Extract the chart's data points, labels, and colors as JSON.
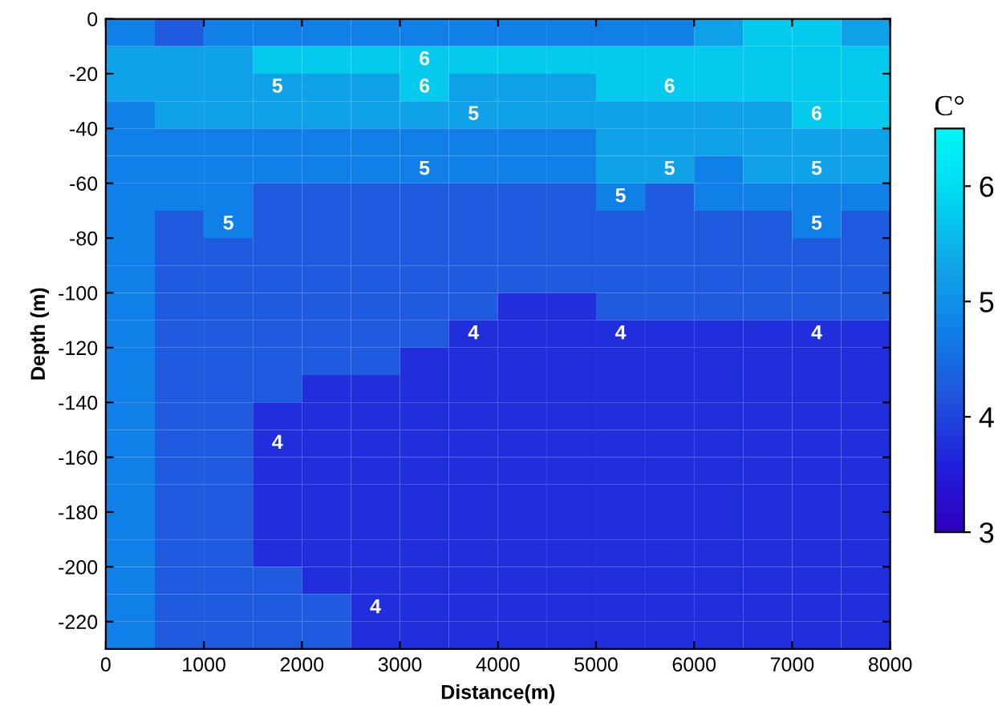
{
  "chart_data": {
    "type": "heatmap",
    "xlabel": "Distance(m)",
    "ylabel": "Depth (m)",
    "clabel": "C°",
    "xlim": [
      0,
      8000
    ],
    "xticks": [
      0,
      1000,
      2000,
      3000,
      4000,
      5000,
      6000,
      7000,
      8000
    ],
    "ylim": [
      -230,
      0
    ],
    "yticks": [
      0,
      -20,
      -40,
      -60,
      -80,
      -100,
      -120,
      -140,
      -160,
      -180,
      -200,
      -220
    ],
    "clim": [
      3,
      6.5
    ],
    "cticks": [
      3,
      4,
      5,
      6
    ],
    "colors": [
      "#3000c0",
      "#2020dc",
      "#2055dc",
      "#1080e8",
      "#10a8e8",
      "#00d8f0",
      "#00f8f8"
    ],
    "cells": [
      [
        4.75,
        4.25,
        4.75,
        4.75,
        4.75,
        4.75,
        4.75,
        4.75,
        4.75,
        4.75,
        4.75,
        4.75,
        5.25,
        5.75,
        5.75,
        5.25
      ],
      [
        5.25,
        5.25,
        5.25,
        5.75,
        5.75,
        5.75,
        5.75,
        5.75,
        5.75,
        5.75,
        5.75,
        5.75,
        5.75,
        5.75,
        5.75,
        5.75
      ],
      [
        5.25,
        5.25,
        5.25,
        5.25,
        5.25,
        5.25,
        5.75,
        5.25,
        5.25,
        5.25,
        5.75,
        5.75,
        5.75,
        5.75,
        5.75,
        5.75
      ],
      [
        4.75,
        5.25,
        5.25,
        5.25,
        5.25,
        5.25,
        5.25,
        5.25,
        5.25,
        5.25,
        5.25,
        5.25,
        5.25,
        5.25,
        5.75,
        5.75
      ],
      [
        4.75,
        4.75,
        4.75,
        4.75,
        4.75,
        4.75,
        4.75,
        4.75,
        4.75,
        4.75,
        5.25,
        5.25,
        5.25,
        5.25,
        5.25,
        5.25
      ],
      [
        4.75,
        4.75,
        4.75,
        4.75,
        4.75,
        4.75,
        4.75,
        4.75,
        4.75,
        4.75,
        5.25,
        5.25,
        4.75,
        5.25,
        5.25,
        5.25
      ],
      [
        4.75,
        4.75,
        4.75,
        4.25,
        4.25,
        4.25,
        4.25,
        4.25,
        4.25,
        4.25,
        4.75,
        4.25,
        4.75,
        4.75,
        4.75,
        4.75
      ],
      [
        4.75,
        4.25,
        4.75,
        4.25,
        4.25,
        4.25,
        4.25,
        4.25,
        4.25,
        4.25,
        4.25,
        4.25,
        4.25,
        4.25,
        4.75,
        4.25
      ],
      [
        4.75,
        4.25,
        4.25,
        4.25,
        4.25,
        4.25,
        4.25,
        4.25,
        4.25,
        4.25,
        4.25,
        4.25,
        4.25,
        4.25,
        4.25,
        4.25
      ],
      [
        4.75,
        4.25,
        4.25,
        4.25,
        4.25,
        4.25,
        4.25,
        4.25,
        4.25,
        4.25,
        4.25,
        4.25,
        4.25,
        4.25,
        4.25,
        4.25
      ],
      [
        4.75,
        4.25,
        4.25,
        4.25,
        4.25,
        4.25,
        4.25,
        4.25,
        3.75,
        3.75,
        4.25,
        4.25,
        4.25,
        4.25,
        4.25,
        4.25
      ],
      [
        4.75,
        4.25,
        4.25,
        4.25,
        4.25,
        4.25,
        4.25,
        3.75,
        3.75,
        3.75,
        3.75,
        3.75,
        3.75,
        3.75,
        3.75,
        3.75
      ],
      [
        4.75,
        4.25,
        4.25,
        4.25,
        4.25,
        4.25,
        3.75,
        3.75,
        3.75,
        3.75,
        3.75,
        3.75,
        3.75,
        3.75,
        3.75,
        3.75
      ],
      [
        4.75,
        4.25,
        4.25,
        4.25,
        3.75,
        3.75,
        3.75,
        3.75,
        3.75,
        3.75,
        3.75,
        3.75,
        3.75,
        3.75,
        3.75,
        3.75
      ],
      [
        4.75,
        4.25,
        4.25,
        3.75,
        3.75,
        3.75,
        3.75,
        3.75,
        3.75,
        3.75,
        3.75,
        3.75,
        3.75,
        3.75,
        3.75,
        3.75
      ],
      [
        4.75,
        4.25,
        4.25,
        3.75,
        3.75,
        3.75,
        3.75,
        3.75,
        3.75,
        3.75,
        3.75,
        3.75,
        3.75,
        3.75,
        3.75,
        3.75
      ],
      [
        4.75,
        4.25,
        4.25,
        3.75,
        3.75,
        3.75,
        3.75,
        3.75,
        3.75,
        3.75,
        3.75,
        3.75,
        3.75,
        3.75,
        3.75,
        3.75
      ],
      [
        4.75,
        4.25,
        4.25,
        3.75,
        3.75,
        3.75,
        3.75,
        3.75,
        3.75,
        3.75,
        3.75,
        3.75,
        3.75,
        3.75,
        3.75,
        3.75
      ],
      [
        4.75,
        4.25,
        4.25,
        3.75,
        3.75,
        3.75,
        3.75,
        3.75,
        3.75,
        3.75,
        3.75,
        3.75,
        3.75,
        3.75,
        3.75,
        3.75
      ],
      [
        4.75,
        4.25,
        4.25,
        3.75,
        3.75,
        3.75,
        3.75,
        3.75,
        3.75,
        3.75,
        3.75,
        3.75,
        3.75,
        3.75,
        3.75,
        3.75
      ],
      [
        4.75,
        4.25,
        4.25,
        4.25,
        3.75,
        3.75,
        3.75,
        3.75,
        3.75,
        3.75,
        3.75,
        3.75,
        3.75,
        3.75,
        3.75,
        3.75
      ],
      [
        4.75,
        4.25,
        4.25,
        4.25,
        4.25,
        3.75,
        3.75,
        3.75,
        3.75,
        3.75,
        3.75,
        3.75,
        3.75,
        3.75,
        3.75,
        3.75
      ],
      [
        4.75,
        4.25,
        4.25,
        4.25,
        4.25,
        3.75,
        3.75,
        3.75,
        3.75,
        3.75,
        3.75,
        3.75,
        3.75,
        3.75,
        3.75,
        3.75
      ]
    ],
    "cell_labels": [
      [
        null,
        null,
        null,
        null,
        null,
        null,
        null,
        null,
        null,
        null,
        null,
        null,
        null,
        null,
        null,
        null
      ],
      [
        null,
        null,
        null,
        null,
        null,
        null,
        "6",
        null,
        null,
        null,
        null,
        null,
        null,
        null,
        null,
        null
      ],
      [
        null,
        null,
        null,
        "5",
        null,
        null,
        "6",
        null,
        null,
        null,
        null,
        "6",
        null,
        null,
        null,
        null
      ],
      [
        null,
        null,
        null,
        null,
        null,
        null,
        null,
        "5",
        null,
        null,
        null,
        null,
        null,
        null,
        "6",
        null
      ],
      [
        null,
        null,
        null,
        null,
        null,
        null,
        null,
        null,
        null,
        null,
        null,
        null,
        null,
        null,
        null,
        null
      ],
      [
        null,
        null,
        null,
        null,
        null,
        null,
        "5",
        null,
        null,
        null,
        null,
        "5",
        null,
        null,
        "5",
        null
      ],
      [
        null,
        null,
        null,
        null,
        null,
        null,
        null,
        null,
        null,
        null,
        "5",
        null,
        null,
        null,
        null,
        null
      ],
      [
        null,
        null,
        "5",
        null,
        null,
        null,
        null,
        null,
        null,
        null,
        null,
        null,
        null,
        null,
        "5",
        null
      ],
      [
        null,
        null,
        null,
        null,
        null,
        null,
        null,
        null,
        null,
        null,
        null,
        null,
        null,
        null,
        null,
        null
      ],
      [
        null,
        null,
        null,
        null,
        null,
        null,
        null,
        null,
        null,
        null,
        null,
        null,
        null,
        null,
        null,
        null
      ],
      [
        null,
        null,
        null,
        null,
        null,
        null,
        null,
        null,
        null,
        null,
        null,
        null,
        null,
        null,
        null,
        null
      ],
      [
        null,
        null,
        null,
        null,
        null,
        null,
        null,
        "4",
        null,
        null,
        "4",
        null,
        null,
        null,
        "4",
        null
      ],
      [
        null,
        null,
        null,
        null,
        null,
        null,
        null,
        null,
        null,
        null,
        null,
        null,
        null,
        null,
        null,
        null
      ],
      [
        null,
        null,
        null,
        null,
        null,
        null,
        null,
        null,
        null,
        null,
        null,
        null,
        null,
        null,
        null,
        null
      ],
      [
        null,
        null,
        null,
        null,
        null,
        null,
        null,
        null,
        null,
        null,
        null,
        null,
        null,
        null,
        null,
        null
      ],
      [
        null,
        null,
        null,
        "4",
        null,
        null,
        null,
        null,
        null,
        null,
        null,
        null,
        null,
        null,
        null,
        null
      ],
      [
        null,
        null,
        null,
        null,
        null,
        null,
        null,
        null,
        null,
        null,
        null,
        null,
        null,
        null,
        null,
        null
      ],
      [
        null,
        null,
        null,
        null,
        null,
        null,
        null,
        null,
        null,
        null,
        null,
        null,
        null,
        null,
        null,
        null
      ],
      [
        null,
        null,
        null,
        null,
        null,
        null,
        null,
        null,
        null,
        null,
        null,
        null,
        null,
        null,
        null,
        null
      ],
      [
        null,
        null,
        null,
        null,
        null,
        null,
        null,
        null,
        null,
        null,
        null,
        null,
        null,
        null,
        null,
        null
      ],
      [
        null,
        null,
        null,
        null,
        null,
        null,
        null,
        null,
        null,
        null,
        null,
        null,
        null,
        null,
        null,
        null
      ],
      [
        null,
        null,
        null,
        null,
        null,
        "4",
        null,
        null,
        null,
        null,
        null,
        null,
        null,
        null,
        null,
        null
      ],
      [
        null,
        null,
        null,
        null,
        null,
        null,
        null,
        null,
        null,
        null,
        null,
        null,
        null,
        null,
        null,
        null
      ]
    ]
  }
}
